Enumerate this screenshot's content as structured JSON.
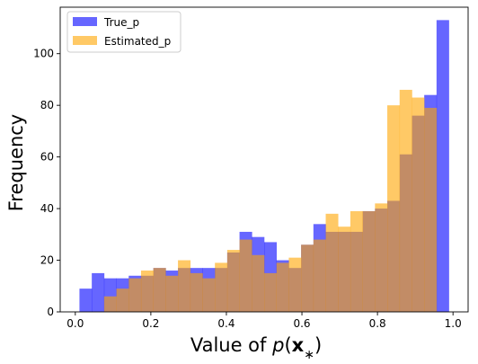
{
  "chart_data": {
    "type": "bar",
    "subtype": "overlapping-histogram",
    "xlabel_prefix": "Value of ",
    "xlabel_math": "p(x*)",
    "ylabel": "Frequency",
    "xlim": [
      -0.04,
      1.04
    ],
    "ylim": [
      0,
      118
    ],
    "x_ticks": [
      0.0,
      0.2,
      0.4,
      0.6,
      0.8,
      1.0
    ],
    "x_tick_labels": [
      "0.0",
      "0.2",
      "0.4",
      "0.6",
      "0.8",
      "1.0"
    ],
    "y_ticks": [
      0,
      20,
      40,
      60,
      80,
      100
    ],
    "y_tick_labels": [
      "0",
      "20",
      "40",
      "60",
      "80",
      "100"
    ],
    "bin_width": 0.0326,
    "legend_position": "top-left",
    "series": [
      {
        "name": "True_p",
        "color": "#0000ff",
        "alpha": 0.6,
        "bin_starts": [
          0.011,
          0.0436,
          0.0762,
          0.1088,
          0.1414,
          0.174,
          0.2066,
          0.2392,
          0.2718,
          0.3044,
          0.337,
          0.3696,
          0.4022,
          0.4348,
          0.4674,
          0.5,
          0.5326,
          0.5652,
          0.5978,
          0.6304,
          0.663,
          0.6956,
          0.7282,
          0.7608,
          0.7934,
          0.826,
          0.8586,
          0.8912,
          0.9238,
          0.9564
        ],
        "values": [
          9,
          15,
          13,
          13,
          14,
          14,
          17,
          16,
          17,
          17,
          17,
          17,
          23,
          31,
          29,
          27,
          20,
          17,
          26,
          34,
          31,
          31,
          31,
          39,
          40,
          43,
          61,
          76,
          84,
          113
        ]
      },
      {
        "name": "Estimated_p",
        "color": "#ffa500",
        "alpha": 0.6,
        "bin_starts": [
          0.0762,
          0.1088,
          0.1414,
          0.174,
          0.2066,
          0.2392,
          0.2718,
          0.3044,
          0.337,
          0.3696,
          0.4022,
          0.4348,
          0.4674,
          0.5,
          0.5326,
          0.5652,
          0.5978,
          0.6304,
          0.663,
          0.6956,
          0.7282,
          0.7608,
          0.7934,
          0.826,
          0.8586,
          0.8912,
          0.9238
        ],
        "values": [
          6,
          9,
          13,
          16,
          17,
          14,
          20,
          15,
          13,
          19,
          24,
          28,
          22,
          15,
          19,
          21,
          26,
          28,
          38,
          33,
          39,
          39,
          42,
          80,
          86,
          83,
          79
        ]
      }
    ]
  }
}
